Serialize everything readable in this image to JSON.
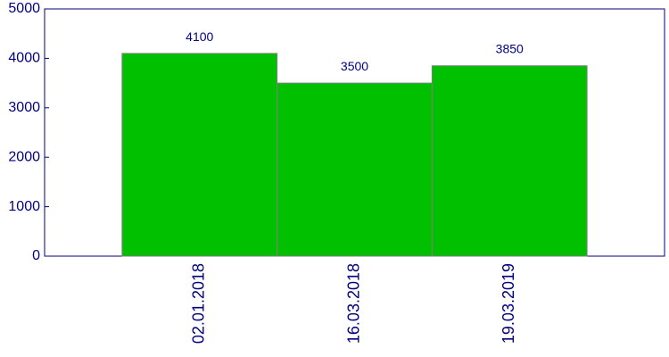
{
  "chart_data": {
    "type": "bar",
    "categories": [
      "02.01.2018",
      "16.03.2018",
      "19.03.2019"
    ],
    "values": [
      4100,
      3500,
      3850
    ],
    "color": "#00c000",
    "ylim": [
      0,
      5000
    ],
    "yticks": [
      0,
      1000,
      2000,
      3000,
      4000,
      5000
    ],
    "grid": false
  }
}
